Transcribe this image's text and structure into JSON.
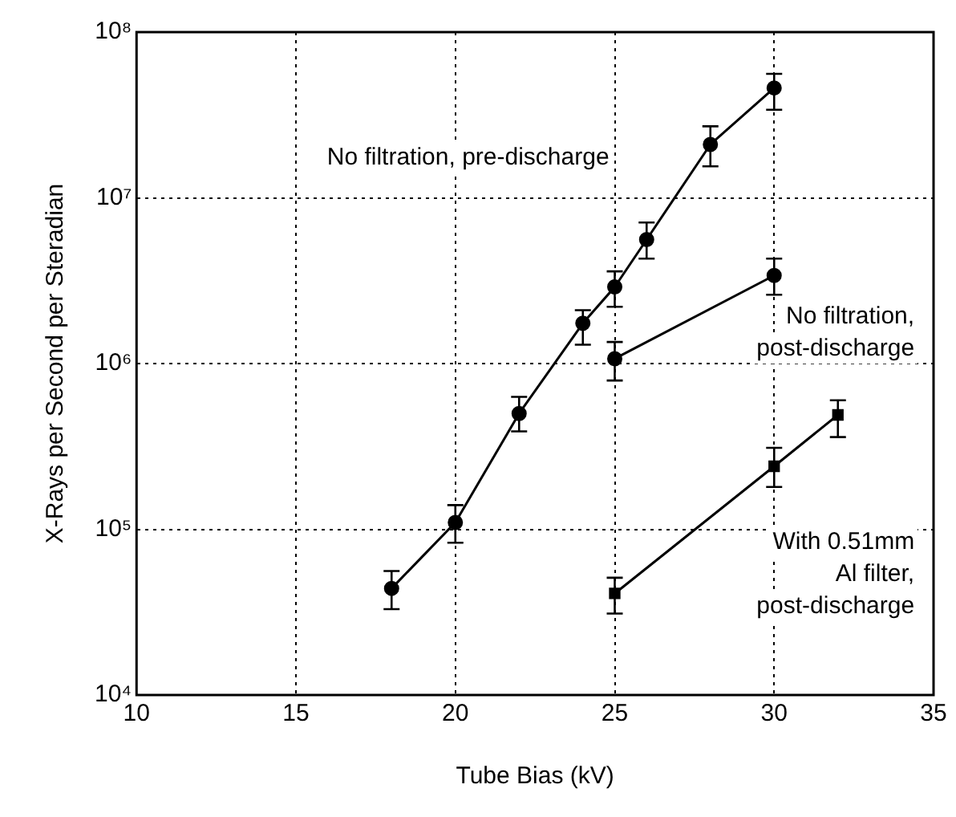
{
  "chart_data": {
    "type": "line",
    "xlabel": "Tube Bias (kV)",
    "ylabel": "X-Rays per Second per Steradian",
    "log": "y",
    "grid": true,
    "legend": false,
    "line_style": "solid",
    "xlim": [
      10,
      35
    ],
    "xticks": [
      10,
      15,
      20,
      25,
      30,
      35
    ],
    "ylim": [
      10000,
      100000000
    ],
    "yticks": [
      {
        "value": 10000,
        "label": "10⁴"
      },
      {
        "value": 100000,
        "label": "10⁵"
      },
      {
        "value": 1000000,
        "label": "10⁶"
      },
      {
        "value": 10000000,
        "label": "10⁷"
      },
      {
        "value": 100000000,
        "label": "10⁸"
      }
    ],
    "series": [
      {
        "name": "No filtration, pre-discharge",
        "color": "#000000",
        "marker": "circle",
        "x": [
          18,
          20,
          22,
          24,
          25,
          26,
          28,
          30
        ],
        "values": [
          44000,
          110000,
          500000,
          1750000,
          2900000,
          5600000,
          21000000,
          46000000
        ],
        "errors": [
          [
            33000,
            56000
          ],
          [
            83000,
            140000
          ],
          [
            390000,
            630000
          ],
          [
            1300000,
            2100000
          ],
          [
            2200000,
            3600000
          ],
          [
            4300000,
            7100000
          ],
          [
            15500000,
            27000000
          ],
          [
            34000000,
            56000000
          ]
        ]
      },
      {
        "name": "No filtration, post-discharge",
        "color": "#000000",
        "marker": "circle",
        "x": [
          25,
          30
        ],
        "values": [
          1070000,
          3400000
        ],
        "errors": [
          [
            790000,
            1350000
          ],
          [
            2600000,
            4300000
          ]
        ]
      },
      {
        "name": "With 0.51mm Al filter, post-discharge",
        "color": "#000000",
        "marker": "square",
        "x": [
          25,
          30,
          32
        ],
        "values": [
          41000,
          240000,
          490000
        ],
        "errors": [
          [
            31000,
            51000
          ],
          [
            180000,
            310000
          ],
          [
            360000,
            600000
          ]
        ]
      }
    ]
  }
}
